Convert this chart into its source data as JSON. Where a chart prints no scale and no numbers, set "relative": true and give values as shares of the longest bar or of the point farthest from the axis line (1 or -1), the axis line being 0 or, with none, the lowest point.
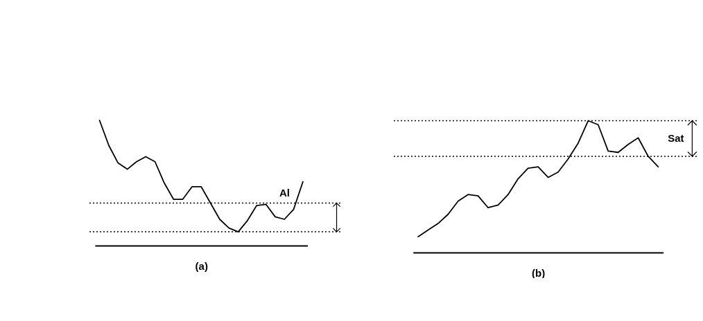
{
  "chart_data": [
    {
      "type": "line",
      "relative": true,
      "xlabel": "(a)",
      "categories": [
        null,
        null,
        null,
        null,
        null,
        null,
        null,
        null,
        null,
        null,
        null,
        null,
        null,
        null,
        null,
        null,
        null,
        null,
        null,
        null,
        null,
        null,
        null
      ],
      "series": [
        {
          "color": "#000000",
          "values": [
            1.0,
            0.8,
            0.66,
            0.61,
            0.67,
            0.71,
            0.67,
            0.5,
            0.37,
            0.37,
            0.47,
            0.47,
            0.34,
            0.21,
            0.14,
            0.11,
            0.2,
            0.32,
            0.33,
            0.23,
            0.21,
            0.29,
            0.51
          ]
        }
      ],
      "ref_lines": [
        {
          "axis": "y",
          "value": 0.34,
          "color": "#000000",
          "line_style": "dotted"
        },
        {
          "axis": "y",
          "value": 0.11,
          "color": "#000000",
          "line_style": "dotted"
        }
      ],
      "annotations": [
        "Al"
      ]
    },
    {
      "type": "line",
      "relative": true,
      "xlabel": "(b)",
      "categories": [
        null,
        null,
        null,
        null,
        null,
        null,
        null,
        null,
        null,
        null,
        null,
        null,
        null,
        null,
        null,
        null,
        null,
        null,
        null,
        null,
        null,
        null,
        null,
        null,
        null
      ],
      "series": [
        {
          "color": "#000000",
          "values": [
            0.12,
            0.17,
            0.22,
            0.29,
            0.39,
            0.44,
            0.43,
            0.34,
            0.36,
            0.44,
            0.56,
            0.64,
            0.65,
            0.57,
            0.61,
            0.71,
            0.83,
            1.0,
            0.97,
            0.77,
            0.76,
            0.82,
            0.87,
            0.73,
            0.65
          ]
        }
      ],
      "ref_lines": [
        {
          "axis": "y",
          "value": 1.0,
          "color": "#000000",
          "line_style": "dotted"
        },
        {
          "axis": "y",
          "value": 0.73,
          "color": "#000000",
          "line_style": "dotted"
        }
      ],
      "annotations": [
        "Sat"
      ]
    }
  ]
}
